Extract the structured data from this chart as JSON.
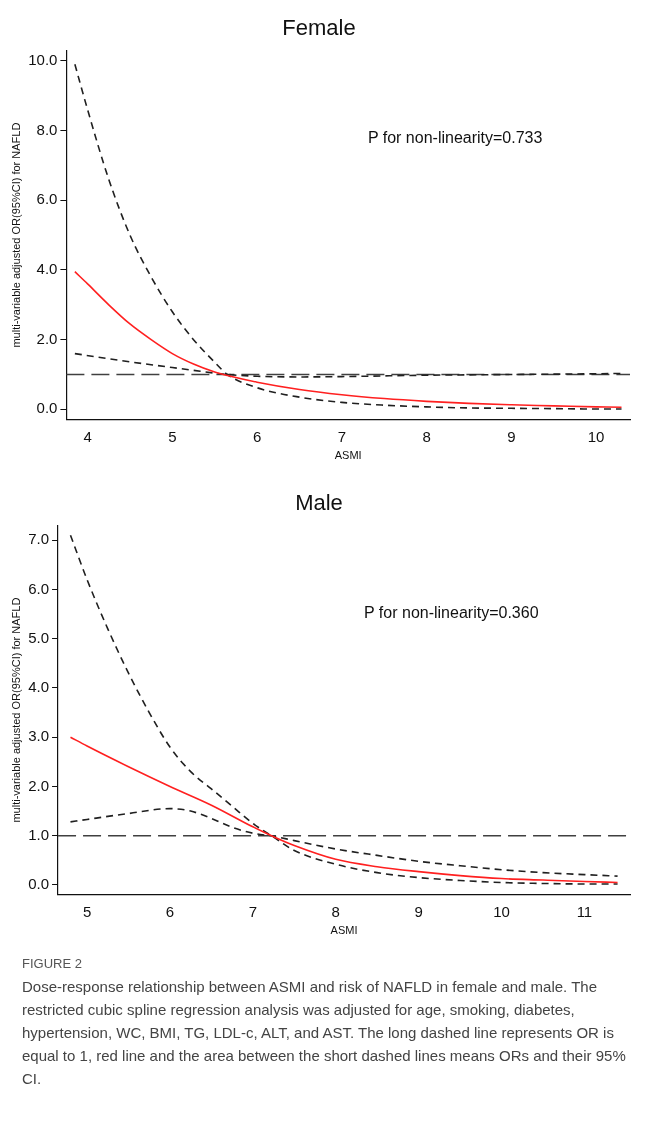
{
  "chart_data": [
    {
      "type": "line",
      "title": "Female",
      "xlabel": "ASMI",
      "ylabel": "multi-variable adjusted OR(95%CI) for NAFLD",
      "xlim": [
        3.75,
        10.4
      ],
      "xticks": [
        4,
        5,
        6,
        7,
        8,
        9,
        10
      ],
      "ylim": [
        -0.3,
        10.3
      ],
      "yticks": [
        {
          "value": 0,
          "label": "0.0"
        },
        {
          "value": 2,
          "label": "2.0"
        },
        {
          "value": 4,
          "label": "4.0"
        },
        {
          "value": 6,
          "label": "6.0"
        },
        {
          "value": 8,
          "label": "8.0"
        },
        {
          "value": 10,
          "label": "10.0"
        }
      ],
      "grid": false,
      "legend": false,
      "marker": "none",
      "annotations": [
        "P for non-linearity=0.733"
      ],
      "ref_lines": [
        {
          "axis": "y",
          "value": 1,
          "color": "#404040",
          "line_style": "dashed"
        }
      ],
      "series": [
        {
          "color": "#ff2020",
          "line_style": "solid",
          "x": [
            3.85,
            4.0,
            4.25,
            4.5,
            4.75,
            5.0,
            5.25,
            5.5,
            5.65,
            6.0,
            6.5,
            7,
            7.5,
            8,
            8.5,
            9,
            9.5,
            10,
            10.3
          ],
          "values": [
            3.95,
            3.6,
            3.0,
            2.45,
            2.0,
            1.6,
            1.3,
            1.07,
            0.97,
            0.78,
            0.57,
            0.42,
            0.31,
            0.23,
            0.17,
            0.13,
            0.1,
            0.07,
            0.06
          ]
        },
        {
          "color": "#202020",
          "line_style": "dashed",
          "x": [
            3.85,
            4.0,
            4.25,
            4.5,
            4.75,
            5.0,
            5.25,
            5.5,
            5.65,
            6.0,
            6.5,
            7,
            7.5,
            8,
            8.5,
            9,
            9.5,
            10,
            10.3
          ],
          "values": [
            9.9,
            8.6,
            6.6,
            5.0,
            3.8,
            2.8,
            2.0,
            1.35,
            1.0,
            0.62,
            0.35,
            0.2,
            0.12,
            0.07,
            0.04,
            0.03,
            0.02,
            0.01,
            0.01
          ]
        },
        {
          "color": "#202020",
          "line_style": "dashed",
          "x": [
            3.85,
            4.25,
            4.75,
            5.0,
            5.25,
            5.5,
            5.65,
            6.0,
            6.5,
            7,
            7.5,
            8,
            8.5,
            9,
            9.5,
            10,
            10.3
          ],
          "values": [
            1.6,
            1.45,
            1.28,
            1.2,
            1.12,
            1.04,
            1.0,
            0.95,
            0.93,
            0.94,
            0.96,
            0.98,
            0.99,
            1.0,
            1.01,
            1.02,
            1.03
          ]
        }
      ]
    },
    {
      "type": "line",
      "title": "Male",
      "xlabel": "ASMI",
      "ylabel": "multi-variable adjusted OR(95%CI) for NAFLD",
      "xlim": [
        4.65,
        11.55
      ],
      "xticks": [
        5,
        6,
        7,
        8,
        9,
        10,
        11
      ],
      "ylim": [
        -0.2,
        7.3
      ],
      "yticks": [
        {
          "value": 0,
          "label": "0.0"
        },
        {
          "value": 1,
          "label": "1.0"
        },
        {
          "value": 2,
          "label": "2.0"
        },
        {
          "value": 3,
          "label": "3.0"
        },
        {
          "value": 4,
          "label": "4.0"
        },
        {
          "value": 5,
          "label": "5.0"
        },
        {
          "value": 6,
          "label": "6.0"
        },
        {
          "value": 7,
          "label": "7.0"
        }
      ],
      "grid": false,
      "legend": false,
      "marker": "none",
      "annotations": [
        "P for non-linearity=0.360",
        "FIGURE 2",
        "Dose-response relationship between ASMI and risk of NAFLD in female and male. The restricted cubic spline regression analysis was adjusted for age, smoking, diabetes, hypertension, WC, BMI, TG, LDL-c, ALT, and AST. The long dashed line represents OR is equal to 1, red line and the area between the short dashed lines means ORs and their 95% CI."
      ],
      "ref_lines": [
        {
          "axis": "y",
          "value": 1,
          "color": "#404040",
          "line_style": "dashed"
        }
      ],
      "series": [
        {
          "color": "#ff2020",
          "line_style": "solid",
          "x": [
            4.8,
            5.0,
            5.5,
            6.0,
            6.5,
            7.0,
            7.25,
            7.5,
            8,
            8.5,
            9,
            9.5,
            10,
            10.5,
            11,
            11.4
          ],
          "values": [
            3.0,
            2.82,
            2.4,
            2.0,
            1.62,
            1.18,
            0.98,
            0.8,
            0.52,
            0.37,
            0.27,
            0.19,
            0.13,
            0.1,
            0.07,
            0.05
          ]
        },
        {
          "color": "#202020",
          "line_style": "dashed",
          "x": [
            4.8,
            5.0,
            5.25,
            5.5,
            5.75,
            6.0,
            6.25,
            6.5,
            6.75,
            7.0,
            7.25,
            7.5,
            8,
            8.5,
            9,
            9.5,
            10,
            10.5,
            11,
            11.4
          ],
          "values": [
            7.1,
            6.2,
            5.2,
            4.3,
            3.5,
            2.8,
            2.3,
            1.95,
            1.6,
            1.25,
            0.97,
            0.7,
            0.42,
            0.25,
            0.15,
            0.09,
            0.05,
            0.03,
            0.02,
            0.02
          ]
        },
        {
          "color": "#202020",
          "line_style": "dashed",
          "x": [
            4.8,
            5.0,
            5.5,
            6.0,
            6.25,
            6.5,
            6.75,
            7.0,
            7.25,
            7.5,
            8,
            8.5,
            9,
            9.5,
            10,
            10.5,
            11,
            11.4
          ],
          "values": [
            1.28,
            1.33,
            1.45,
            1.55,
            1.5,
            1.35,
            1.17,
            1.05,
            0.99,
            0.9,
            0.73,
            0.6,
            0.48,
            0.39,
            0.31,
            0.25,
            0.21,
            0.18
          ]
        }
      ]
    }
  ]
}
